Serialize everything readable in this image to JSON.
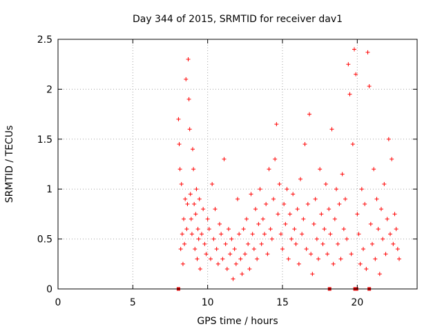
{
  "chart_data": {
    "type": "scatter",
    "title": "Day 344 of 2015, SRMTID for receiver dav1",
    "xlabel": "GPS time / hours",
    "ylabel": "SRMTID / TECUs",
    "xlim": [
      0,
      24
    ],
    "ylim": [
      0,
      2.5
    ],
    "xticks": [
      0,
      5,
      10,
      15,
      20
    ],
    "yticks": [
      0,
      0.5,
      1,
      1.5,
      2,
      2.5
    ],
    "xtick_labels": [
      "0",
      "5",
      "10",
      "15",
      "20"
    ],
    "ytick_labels": [
      "0",
      "0.5",
      "1",
      "1.5",
      "2",
      "2.5"
    ],
    "grid": true,
    "marker": "plus",
    "color": "#ff0000",
    "series": [
      {
        "x": [
          8.05,
          8.1,
          8.15,
          8.2,
          8.25,
          8.3,
          8.35,
          8.4,
          8.45,
          8.5,
          8.55,
          8.6,
          8.65,
          8.7,
          8.75,
          8.8,
          8.85,
          8.9,
          8.95,
          9.0,
          9.05,
          9.1,
          9.15,
          9.2,
          9.25,
          9.3,
          9.35,
          9.4,
          9.45,
          9.5,
          9.6,
          9.7,
          9.8,
          9.9,
          10.0,
          10.1,
          10.2,
          10.3,
          10.4,
          10.5,
          10.6,
          10.7,
          10.8,
          10.9,
          11.0,
          11.1,
          11.2,
          11.3,
          11.4,
          11.5,
          11.6,
          11.7,
          11.8,
          11.9,
          12.0,
          12.1,
          12.2,
          12.3,
          12.4,
          12.5,
          12.6,
          12.7,
          12.8,
          12.9,
          13.0,
          13.1,
          13.2,
          13.3,
          13.4,
          13.5,
          13.6,
          13.7,
          13.8,
          13.9,
          14.0,
          14.1,
          14.2,
          14.3,
          14.4,
          14.5,
          14.6,
          14.7,
          14.8,
          14.9,
          15.0,
          15.1,
          15.2,
          15.3,
          15.4,
          15.5,
          15.6,
          15.7,
          15.8,
          15.9,
          16.0,
          16.1,
          16.2,
          16.3,
          16.4,
          16.5,
          16.6,
          16.7,
          16.8,
          16.9,
          17.0,
          17.1,
          17.2,
          17.3,
          17.4,
          17.5,
          17.6,
          17.7,
          17.8,
          17.9,
          18.0,
          18.1,
          18.2,
          18.3,
          18.4,
          18.5,
          18.6,
          18.7,
          18.8,
          18.9,
          19.0,
          19.1,
          19.2,
          19.3,
          19.4,
          19.5,
          19.6,
          19.7,
          19.8,
          19.9,
          20.0,
          20.1,
          20.2,
          20.3,
          20.4,
          20.5,
          20.6,
          20.7,
          20.8,
          20.9,
          21.0,
          21.1,
          21.2,
          21.3,
          21.4,
          21.5,
          21.6,
          21.7,
          21.8,
          21.9,
          22.0,
          22.1,
          22.2,
          22.3,
          22.4,
          22.5,
          22.6,
          22.7,
          22.8
        ],
        "y": [
          1.7,
          1.45,
          1.2,
          0.4,
          1.05,
          0.55,
          0.25,
          0.7,
          0.45,
          0.9,
          2.1,
          0.6,
          0.85,
          2.3,
          1.9,
          1.6,
          0.95,
          0.7,
          0.55,
          1.4,
          1.2,
          0.85,
          0.4,
          0.75,
          1.0,
          0.3,
          0.6,
          0.5,
          0.9,
          0.2,
          0.55,
          0.8,
          0.45,
          0.35,
          0.7,
          0.6,
          0.3,
          1.05,
          0.5,
          0.8,
          0.4,
          0.25,
          0.65,
          0.55,
          0.3,
          1.3,
          0.45,
          0.2,
          0.6,
          0.35,
          0.5,
          0.1,
          0.4,
          0.25,
          0.9,
          0.55,
          0.3,
          0.15,
          0.6,
          0.35,
          0.7,
          0.45,
          0.2,
          0.95,
          0.55,
          0.4,
          0.8,
          0.3,
          0.65,
          1.0,
          0.45,
          0.7,
          0.55,
          0.85,
          0.35,
          1.2,
          0.6,
          0.5,
          0.9,
          1.3,
          1.65,
          0.75,
          1.05,
          0.55,
          0.4,
          0.85,
          0.65,
          1.0,
          0.3,
          0.75,
          0.5,
          0.95,
          0.6,
          0.45,
          0.8,
          0.25,
          1.1,
          0.55,
          0.7,
          1.45,
          0.4,
          0.85,
          1.75,
          0.35,
          0.15,
          0.65,
          0.9,
          0.5,
          0.3,
          1.2,
          0.75,
          0.45,
          0.6,
          1.05,
          0.35,
          0.8,
          0.55,
          1.6,
          0.25,
          0.7,
          1.0,
          0.45,
          0.85,
          0.3,
          1.15,
          0.6,
          0.9,
          0.5,
          2.25,
          1.95,
          0.35,
          1.45,
          2.4,
          2.15,
          0.75,
          0.55,
          0.25,
          1.0,
          0.4,
          0.85,
          0.2,
          2.37,
          2.03,
          0.65,
          0.45,
          1.2,
          0.3,
          0.9,
          0.6,
          0.15,
          0.8,
          0.5,
          1.05,
          0.35,
          0.7,
          1.5,
          0.55,
          1.3,
          0.45,
          0.75,
          0.6,
          0.4,
          0.3
        ]
      },
      {
        "name": "",
        "marker": "square",
        "x": [
          8.05,
          18.15,
          19.85,
          19.95,
          20.8
        ],
        "y": [
          0,
          0,
          0,
          0,
          0
        ]
      }
    ]
  }
}
